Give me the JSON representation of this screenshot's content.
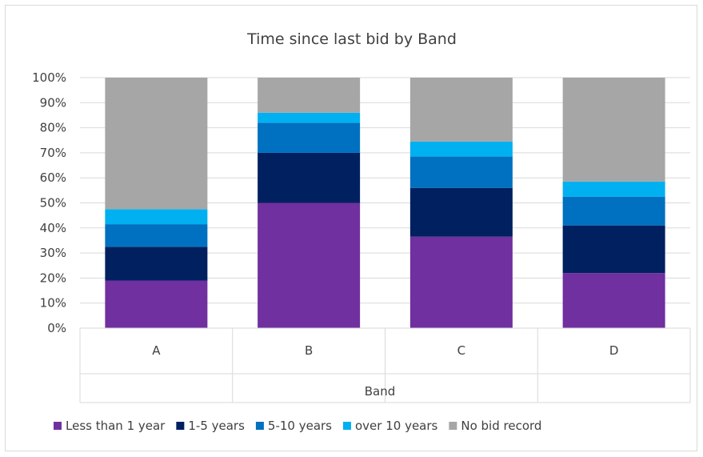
{
  "chart_data": {
    "type": "bar",
    "stacked": true,
    "percent": true,
    "title": "Time since last bid by Band",
    "xlabel": "Band",
    "ylabel": "",
    "categories": [
      "A",
      "B",
      "C",
      "D"
    ],
    "ylim": [
      0,
      100
    ],
    "yticks": [
      "0%",
      "10%",
      "20%",
      "30%",
      "40%",
      "50%",
      "60%",
      "70%",
      "80%",
      "90%",
      "100%"
    ],
    "grid": true,
    "legend_position": "bottom",
    "series": [
      {
        "name": "Less than 1 year",
        "color": "#7030a0",
        "values": [
          19,
          50,
          36.5,
          22
        ]
      },
      {
        "name": "1-5 years",
        "color": "#002060",
        "values": [
          13.5,
          20,
          19.5,
          19
        ]
      },
      {
        "name": "5-10 years",
        "color": "#0070c0",
        "values": [
          9,
          12,
          12.5,
          11.5
        ]
      },
      {
        "name": "over 10 years",
        "color": "#00b0f0",
        "values": [
          6,
          4,
          6,
          6
        ]
      },
      {
        "name": "No bid record",
        "color": "#a6a6a6",
        "values": [
          52.5,
          14,
          25.5,
          41.5
        ]
      }
    ]
  }
}
